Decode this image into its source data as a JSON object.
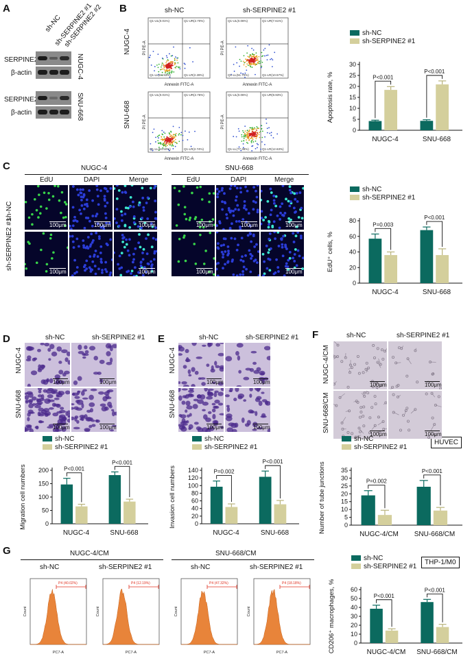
{
  "panels": [
    "A",
    "B",
    "C",
    "D",
    "E",
    "F",
    "G"
  ],
  "a": {
    "columns": [
      "sh-NC",
      "sh-SERPINE2 #1",
      "sh-SERPINE2 #2"
    ],
    "rows": [
      "SERPINE2",
      "β-actin",
      "SERPINE2",
      "β-actin"
    ],
    "cell_lines": [
      "NUGC-4",
      "SNU-668"
    ]
  },
  "b": {
    "col_titles": [
      "sh-NC",
      "sh-SERPINE2 #1"
    ],
    "row_titles": [
      "NUGC-4",
      "SNU-668"
    ],
    "x_axis": "Annexin FITC-A",
    "y_axis": "PI PE-A",
    "quadrants": [
      [
        "Q1-UL(0.01%)",
        "Q1-UR(2.70%)",
        "Q1-LL(84.93%)",
        "Q1-LR(2.28%)"
      ],
      [
        "Q1-UL(0.06%)",
        "Q1-UR(7.61%)",
        "Q1-LL(51.70%)",
        "Q1-LR(10.57%)"
      ],
      [
        "Q1-UL(0.01%)",
        "Q1-UR(2.76%)",
        "Q1-LL(84.50%)",
        "Q1-LR(2.74%)"
      ],
      [
        "Q1-UL(0.06%)",
        "Q1-UR(9.93%)",
        "Q1-LL(77.38%)",
        "Q1-LR(12.63%)"
      ]
    ]
  },
  "c": {
    "groups": [
      "NUGC-4",
      "SNU-668"
    ],
    "channels": [
      "EdU",
      "DAPI",
      "Merge"
    ],
    "rows": [
      "sh-NC",
      "sh-SERPINE2 #1"
    ],
    "scale": "100μm"
  },
  "d": {
    "cols": [
      "sh-NC",
      "sh-SERPINE2 #1"
    ],
    "rows": [
      "NUGC-4",
      "SNU-668"
    ],
    "scale": "100μm"
  },
  "e": {
    "cols": [
      "sh-NC",
      "sh-SERPINE2 #1"
    ],
    "rows": [
      "NUGC-4",
      "SNU-668"
    ],
    "scale": "100μm"
  },
  "f": {
    "cols": [
      "sh-NC",
      "sh-SERPINE2 #1"
    ],
    "rows": [
      "NUGC-4/CM",
      "SNU-668/CM"
    ],
    "scale": "100μm",
    "tag": "HUVEC"
  },
  "g": {
    "groups": [
      "NUGC-4/CM",
      "SNU-668/CM"
    ],
    "cols": [
      "sh-NC",
      "sh-SERPINE2 #1",
      "sh-NC",
      "sh-SERPINE2 #1"
    ],
    "gates": [
      "P4 (40.02%)",
      "P4 (12.19%)",
      "P4 (47.32%)",
      "P4 (18.18%)"
    ],
    "x_axis": "PC7-A",
    "y_axis": "Count",
    "tag": "THP-1/M0"
  },
  "colors": {
    "sh_nc": "#0b6a5f",
    "sh_serpine2": "#d4cf9c"
  },
  "chart_data": [
    {
      "type": "bar",
      "categories": [
        "NUGC-4",
        "SNU-668"
      ],
      "series": [
        {
          "name": "sh-NC",
          "values": [
            4.2,
            4.3
          ]
        },
        {
          "name": "sh-SERPINE2 #1",
          "values": [
            18.4,
            20.9
          ]
        }
      ],
      "errors": [
        [
          0.4,
          0.5
        ],
        [
          1.5,
          1.6
        ]
      ],
      "ylabel": "Apoptosis rate, %",
      "yticks": [
        "0",
        "5",
        "10",
        "15",
        "20",
        "25",
        "30"
      ],
      "ylim": [
        0,
        30
      ],
      "annotations": [
        "P<0.001",
        "P<0.001"
      ]
    },
    {
      "type": "bar",
      "categories": [
        "NUGC-4",
        "SNU-668"
      ],
      "series": [
        {
          "name": "sh-NC",
          "values": [
            57,
            68
          ]
        },
        {
          "name": "sh-SERPINE2 #1",
          "values": [
            36,
            36
          ]
        }
      ],
      "errors": [
        [
          6,
          4
        ],
        [
          4,
          8
        ]
      ],
      "ylabel": "EdU⁺ cells, %",
      "yticks": [
        "0",
        "20",
        "40",
        "60",
        "80"
      ],
      "ylim": [
        0,
        80
      ],
      "annotations": [
        "P=0.003",
        "P<0.001"
      ]
    },
    {
      "type": "bar",
      "categories": [
        "NUGC-4",
        "SNU-668"
      ],
      "series": [
        {
          "name": "sh-NC",
          "values": [
            147,
            182
          ]
        },
        {
          "name": "sh-SERPINE2 #1",
          "values": [
            65,
            83
          ]
        }
      ],
      "errors": [
        [
          23,
          12
        ],
        [
          8,
          9
        ]
      ],
      "ylabel": "Migration cell numbers",
      "yticks": [
        "0",
        "50",
        "100",
        "150",
        "200"
      ],
      "ylim": [
        0,
        200
      ],
      "annotations": [
        "P<0.001",
        "P<0.001"
      ]
    },
    {
      "type": "bar",
      "categories": [
        "NUGC-4",
        "SNU-668"
      ],
      "series": [
        {
          "name": "sh-NC",
          "values": [
            97,
            123
          ]
        },
        {
          "name": "sh-SERPINE2 #1",
          "values": [
            44,
            51
          ]
        }
      ],
      "errors": [
        [
          15,
          15
        ],
        [
          8,
          10
        ]
      ],
      "ylabel": "Invasion cell numbers",
      "yticks": [
        "0",
        "20",
        "40",
        "60",
        "80",
        "100",
        "120",
        "140"
      ],
      "ylim": [
        0,
        140
      ],
      "annotations": [
        "P=0.002",
        "P<0.001"
      ]
    },
    {
      "type": "bar",
      "categories": [
        "NUGC-4/CM",
        "SNU-668/CM"
      ],
      "series": [
        {
          "name": "sh-NC",
          "values": [
            19,
            24.5
          ]
        },
        {
          "name": "sh-SERPINE2 #1",
          "values": [
            6.5,
            9.3
          ]
        }
      ],
      "errors": [
        [
          3,
          4
        ],
        [
          3,
          2
        ]
      ],
      "ylabel": "Number of tube junctions",
      "yticks": [
        "0",
        "5",
        "10",
        "15",
        "20",
        "25",
        "30",
        "35"
      ],
      "ylim": [
        0,
        35
      ],
      "annotations": [
        "P=0.002",
        "P<0.001"
      ]
    },
    {
      "type": "bar",
      "categories": [
        "NUGC-4/CM",
        "SNU-668/CM"
      ],
      "series": [
        {
          "name": "sh-NC",
          "values": [
            38.5,
            46
          ]
        },
        {
          "name": "sh-SERPINE2 #1",
          "values": [
            14,
            18
          ]
        }
      ],
      "errors": [
        [
          4,
          3
        ],
        [
          2,
          3
        ]
      ],
      "ylabel": "CD206⁺ macrophages, %",
      "yticks": [
        "0",
        "10",
        "20",
        "30",
        "40",
        "50",
        "60"
      ],
      "ylim": [
        0,
        60
      ],
      "annotations": [
        "P<0.001",
        "P<0.001"
      ]
    }
  ]
}
